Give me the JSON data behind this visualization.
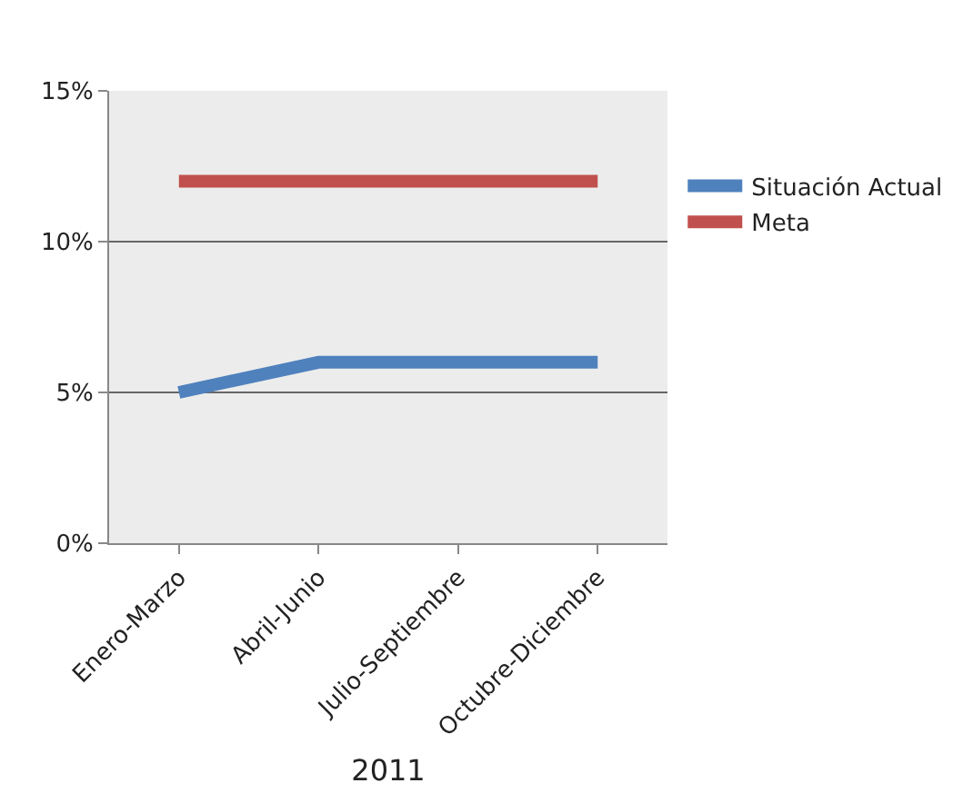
{
  "chart_data": {
    "type": "line",
    "xlabel": "2011",
    "categories": [
      "Enero-Marzo",
      "Abril-Junio",
      "Julio-Septiembre",
      "Octubre-Diciembre"
    ],
    "series": [
      {
        "name": "Situación Actual",
        "color": "#4f81bd",
        "values": [
          5,
          6,
          6,
          6
        ]
      },
      {
        "name": "Meta",
        "color": "#c0504d",
        "values": [
          12,
          12,
          12,
          12
        ]
      }
    ],
    "ylim": [
      0,
      15
    ],
    "yticks": [
      {
        "value": 0,
        "label": "0%"
      },
      {
        "value": 5,
        "label": "5%"
      },
      {
        "value": 10,
        "label": "10%"
      },
      {
        "value": 15,
        "label": "15%"
      }
    ],
    "grid": "y",
    "legend": "right",
    "marker": "none",
    "line_style": "solid"
  }
}
